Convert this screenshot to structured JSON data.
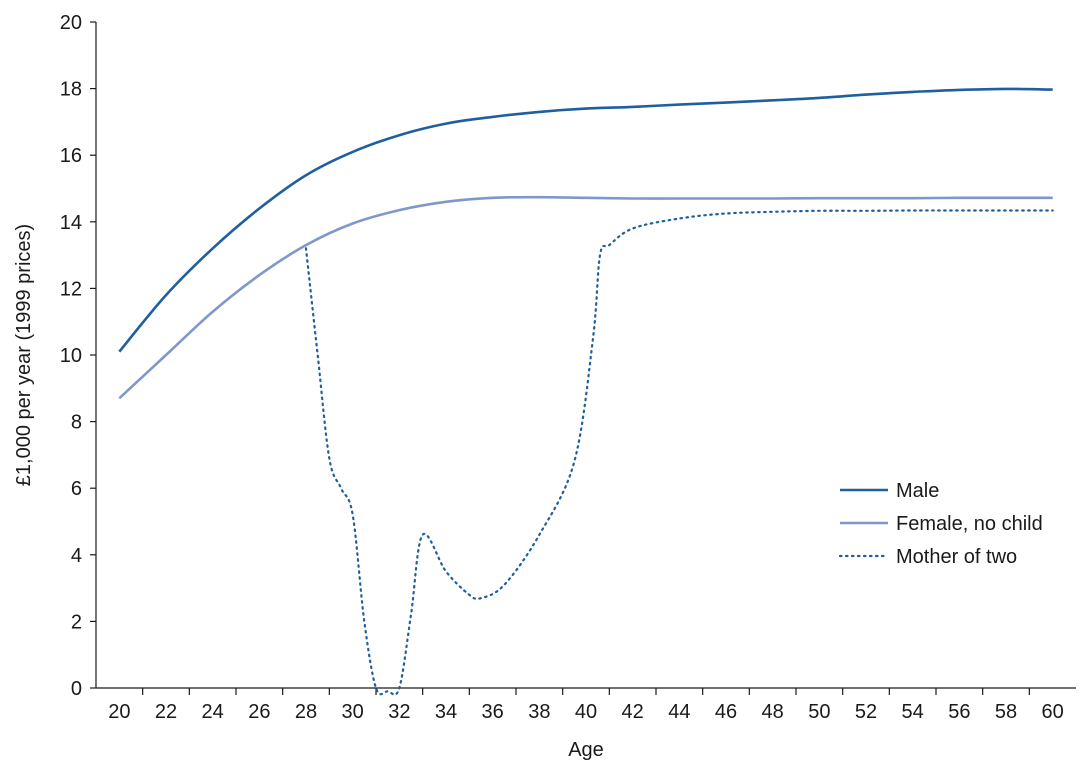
{
  "chart_data": {
    "type": "line",
    "xlabel": "Age",
    "ylabel": "£1,000 per year (1999 prices)",
    "xlim": [
      19,
      61
    ],
    "ylim": [
      0,
      20
    ],
    "x_ticks": [
      20,
      22,
      24,
      26,
      28,
      30,
      32,
      34,
      36,
      38,
      40,
      42,
      44,
      46,
      48,
      50,
      52,
      54,
      56,
      58,
      60
    ],
    "y_ticks": [
      0,
      2,
      4,
      6,
      8,
      10,
      12,
      14,
      16,
      18,
      20
    ],
    "grid": false,
    "legend_position": "right",
    "series": [
      {
        "name": "Male",
        "color": "#1f5fa0",
        "style": "solid",
        "x": [
          20,
          22,
          24,
          26,
          28,
          30,
          32,
          34,
          36,
          38,
          40,
          42,
          44,
          46,
          48,
          50,
          52,
          54,
          56,
          58,
          60
        ],
        "y": [
          10.1,
          11.8,
          13.2,
          14.4,
          15.4,
          16.1,
          16.6,
          16.95,
          17.15,
          17.3,
          17.4,
          17.45,
          17.52,
          17.58,
          17.65,
          17.72,
          17.82,
          17.9,
          17.96,
          17.99,
          17.97
        ]
      },
      {
        "name": "Female, no child",
        "color": "#7f98cc",
        "style": "solid",
        "x": [
          20,
          22,
          24,
          26,
          28,
          30,
          32,
          34,
          36,
          38,
          40,
          42,
          44,
          46,
          48,
          50,
          52,
          54,
          56,
          58,
          60
        ],
        "y": [
          8.7,
          10.0,
          11.3,
          12.4,
          13.3,
          13.95,
          14.35,
          14.6,
          14.72,
          14.74,
          14.72,
          14.7,
          14.7,
          14.7,
          14.7,
          14.71,
          14.71,
          14.71,
          14.72,
          14.72,
          14.72
        ]
      },
      {
        "name": "Mother of two",
        "color": "#1f5fa0",
        "style": "dotted",
        "x": [
          28,
          28.5,
          29,
          29.5,
          30,
          30.5,
          31,
          31.5,
          32,
          32.5,
          33,
          34,
          35,
          35.5,
          36.5,
          38,
          39.5,
          40.3,
          40.6,
          41,
          42,
          44,
          46,
          48,
          50,
          52,
          54,
          56,
          58,
          60
        ],
        "y": [
          13.2,
          10.0,
          6.9,
          6.0,
          5.2,
          2.0,
          0.0,
          -0.1,
          0.0,
          2.2,
          4.6,
          3.5,
          2.8,
          2.7,
          3.1,
          4.6,
          6.8,
          10.5,
          13.0,
          13.3,
          13.8,
          14.1,
          14.25,
          14.3,
          14.33,
          14.33,
          14.34,
          14.34,
          14.34,
          14.34
        ]
      }
    ]
  }
}
